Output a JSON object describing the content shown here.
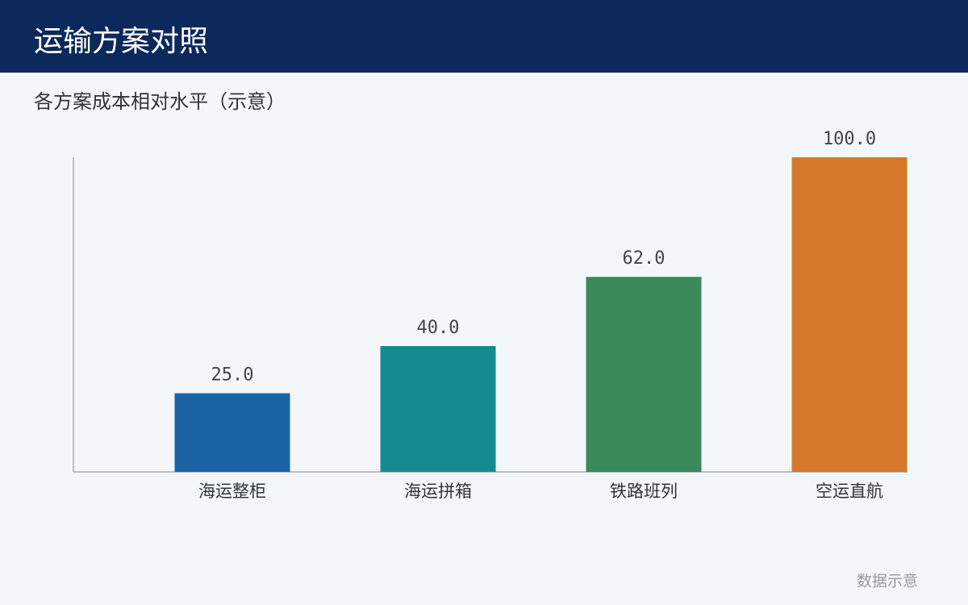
{
  "header": {
    "title": "运输方案对照"
  },
  "chart_data": {
    "type": "bar",
    "title": "各方案成本相对水平（示意）",
    "categories": [
      "海运整柜",
      "海运拼箱",
      "铁路班列",
      "空运直航"
    ],
    "values": [
      25,
      40,
      62,
      100
    ],
    "value_labels": [
      "25.0",
      "40.0",
      "62.0",
      "100.0"
    ],
    "colors": [
      "#1a63a5",
      "#138b8f",
      "#3a8a5a",
      "#d5782a"
    ],
    "ylim": [
      0,
      100
    ]
  },
  "footer": {
    "note": "数据示意"
  }
}
